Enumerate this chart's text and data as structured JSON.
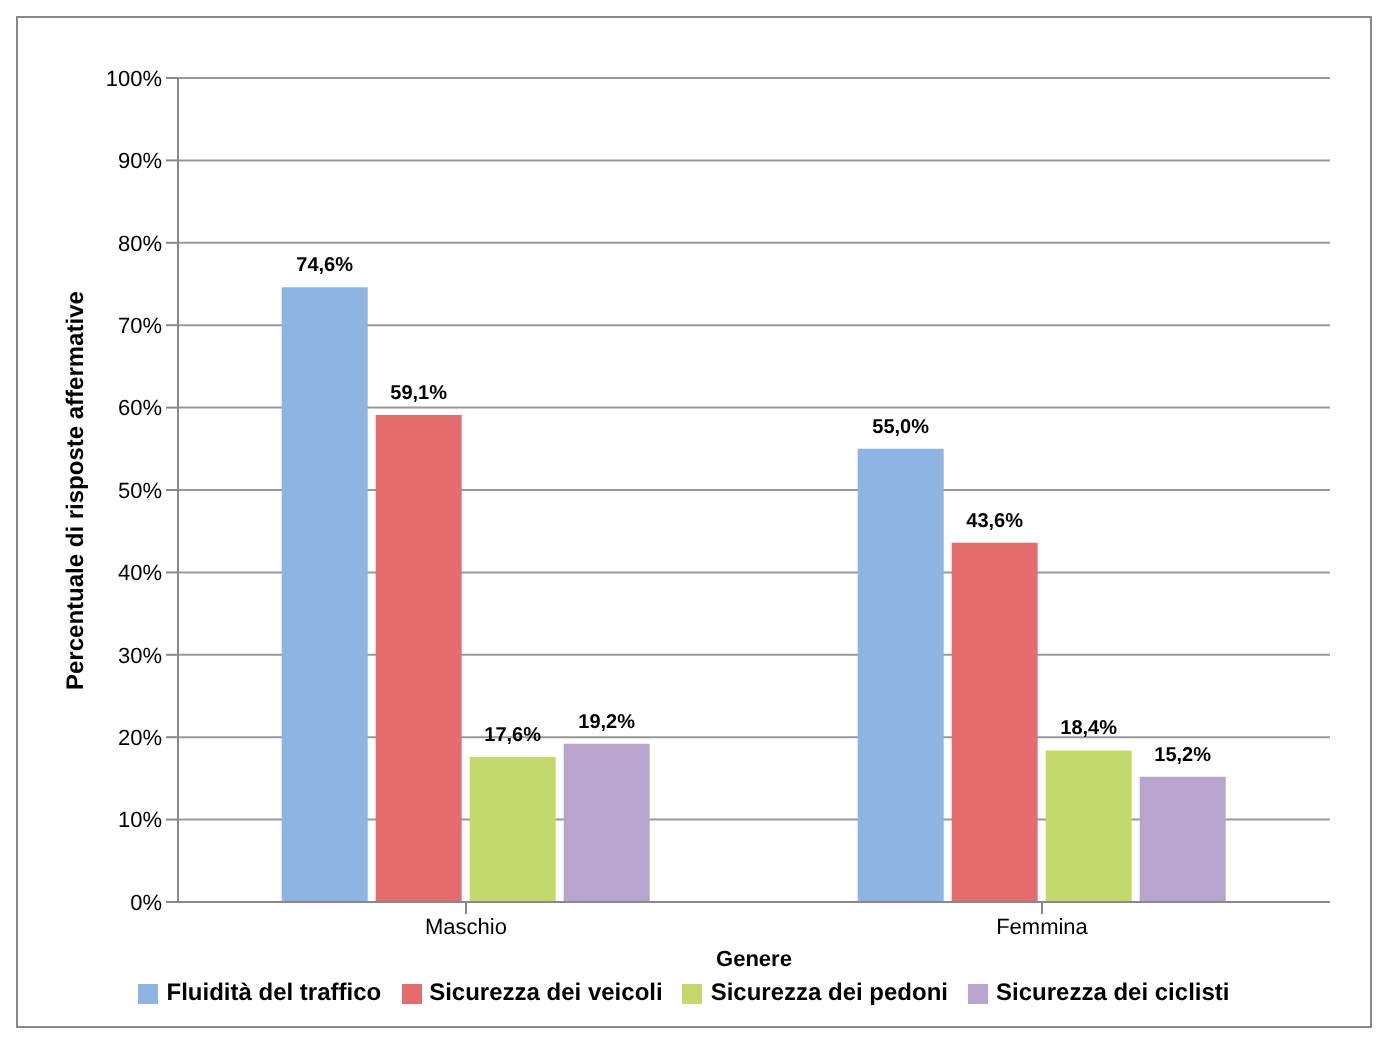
{
  "chart_data": {
    "type": "bar",
    "xlabel": "Genere",
    "ylabel": "Percentuale di risposte affermative",
    "categories": [
      "Maschio",
      "Femmina"
    ],
    "series": [
      {
        "name": "Fluidità del traffico",
        "color": "#8db4e2",
        "values": [
          74.6,
          55.0
        ],
        "value_labels": [
          "74,6%",
          "55,0%"
        ]
      },
      {
        "name": "Sicurezza dei veicoli",
        "color": "#e46c6c",
        "values": [
          59.1,
          43.6
        ],
        "value_labels": [
          "59,1%",
          "43,6%"
        ]
      },
      {
        "name": "Sicurezza dei pedoni",
        "color": "#c3d96b",
        "values": [
          17.6,
          18.4
        ],
        "value_labels": [
          "17,6%",
          "18,4%"
        ]
      },
      {
        "name": "Sicurezza dei ciclisti",
        "color": "#b9a3cf",
        "values": [
          19.2,
          15.2
        ],
        "value_labels": [
          "19,2%",
          "15,2%"
        ]
      }
    ],
    "ylim": [
      0,
      100
    ],
    "yticks": [
      {
        "value": 0,
        "label": "0%"
      },
      {
        "value": 10,
        "label": "10%"
      },
      {
        "value": 20,
        "label": "20%"
      },
      {
        "value": 30,
        "label": "30%"
      },
      {
        "value": 40,
        "label": "40%"
      },
      {
        "value": 50,
        "label": "50%"
      },
      {
        "value": 60,
        "label": "60%"
      },
      {
        "value": 70,
        "label": "70%"
      },
      {
        "value": 80,
        "label": "80%"
      },
      {
        "value": 90,
        "label": "90%"
      },
      {
        "value": 100,
        "label": "100%"
      }
    ],
    "grid": "y",
    "legend": "bottom"
  }
}
